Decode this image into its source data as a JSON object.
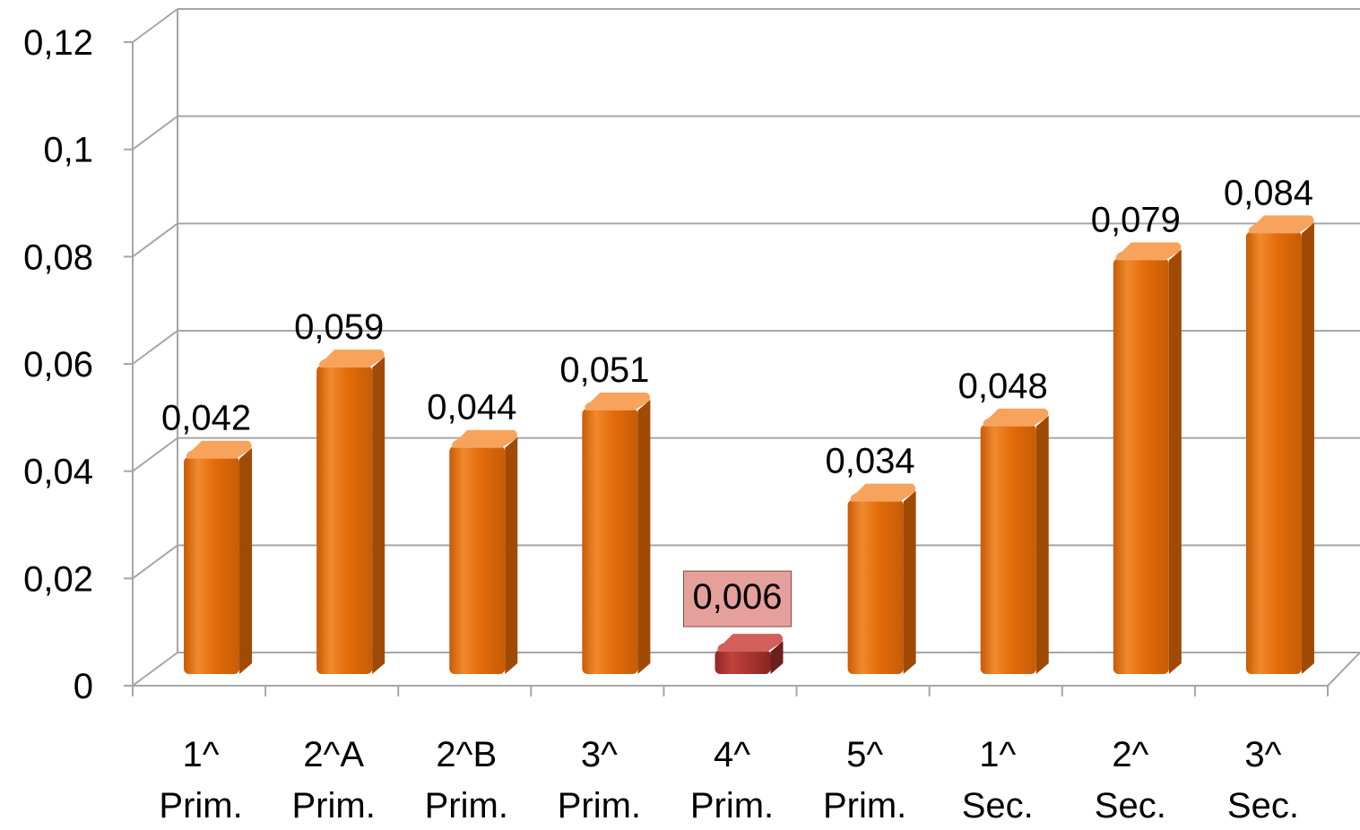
{
  "chart_data": {
    "type": "bar",
    "title": "",
    "xlabel": "",
    "ylabel": "",
    "categories": [
      [
        "1^",
        "Prim."
      ],
      [
        "2^A",
        "Prim."
      ],
      [
        "2^B",
        "Prim."
      ],
      [
        "3^",
        "Prim."
      ],
      [
        "4^",
        "Prim."
      ],
      [
        "5^",
        "Prim."
      ],
      [
        "1^",
        "Sec."
      ],
      [
        "2^",
        "Sec."
      ],
      [
        "3^",
        "Sec."
      ]
    ],
    "values": [
      0.042,
      0.059,
      0.044,
      0.051,
      0.006,
      0.034,
      0.048,
      0.079,
      0.084
    ],
    "value_labels": [
      "0,042",
      "0,059",
      "0,044",
      "0,051",
      "0,006",
      "0,034",
      "0,048",
      "0,079",
      "0,084"
    ],
    "highlight_index": 4,
    "ylim": [
      0,
      0.12
    ],
    "yticks": [
      0,
      0.02,
      0.04,
      0.06,
      0.08,
      0.1,
      0.12
    ],
    "ytick_labels": [
      "0",
      "0,02",
      "0,04",
      "0,06",
      "0,08",
      "0,1",
      "0,12"
    ],
    "grid": true,
    "legend": "none",
    "colors": {
      "bar": "#E46C0A",
      "bar_dark": "#A04A06",
      "bar_light": "#F7A35C",
      "highlight_bar": "#A8322E",
      "highlight_bar_dark": "#6E1E1B",
      "highlight_label_bg": "#E6A09C",
      "grid": "#A6A6A6"
    }
  }
}
